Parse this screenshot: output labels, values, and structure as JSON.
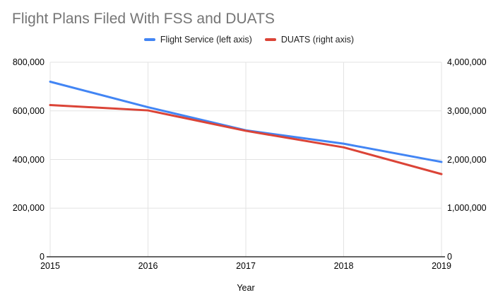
{
  "chart_data": {
    "type": "line",
    "title": "Flight Plans Filed With FSS and DUATS",
    "xlabel": "Year",
    "x": [
      "2015",
      "2016",
      "2017",
      "2018",
      "2019"
    ],
    "series": [
      {
        "name": "Flight Service (left axis)",
        "axis": "left",
        "color": "#4285f4",
        "values": [
          720000,
          615000,
          520000,
          465000,
          390000
        ]
      },
      {
        "name": "DUATS (right axis)",
        "axis": "right",
        "color": "#db4437",
        "values": [
          3120000,
          3010000,
          2590000,
          2250000,
          1700000
        ]
      }
    ],
    "left_axis": {
      "min": 0,
      "max": 800000,
      "ticks": [
        "0",
        "200,000",
        "400,000",
        "600,000",
        "800,000"
      ]
    },
    "right_axis": {
      "min": 0,
      "max": 4000000,
      "ticks": [
        "0",
        "1,000,000",
        "2,000,000",
        "3,000,000",
        "4,000,000"
      ]
    },
    "grid": true,
    "legend_position": "top",
    "colors": {
      "title": "#757575",
      "grid": "#e3e3e3",
      "axis_line": "#333333",
      "tick_text": "#000000",
      "legend_text": "#212121"
    }
  }
}
